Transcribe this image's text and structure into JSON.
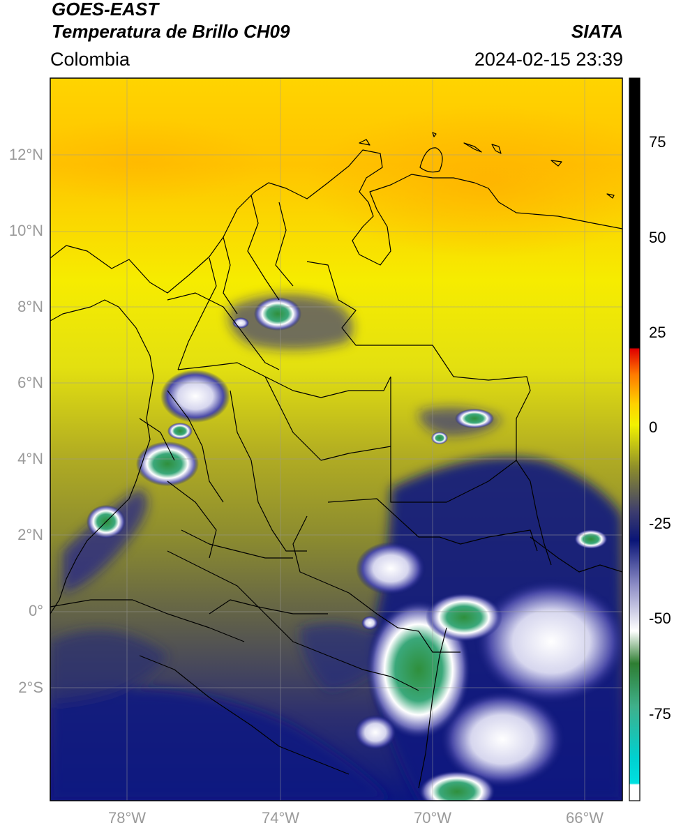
{
  "header": {
    "satellite": "GOES-EAST",
    "product": "Temperatura de Brillo CH09",
    "region": "Colombia",
    "agency": "SIATA",
    "datetime": "2024-02-15 23:39"
  },
  "map": {
    "lat_range": [
      -5,
      14
    ],
    "lon_range": [
      -80,
      -65
    ],
    "lat_ticks": [
      "12°N",
      "10°N",
      "8°N",
      "6°N",
      "4°N",
      "2°N",
      "0°",
      "2°S"
    ],
    "lon_ticks": [
      "78°W",
      "74°W",
      "70°W",
      "66°W"
    ]
  },
  "colorbar": {
    "range": [
      -100,
      90
    ],
    "ticks": [
      "75",
      "50",
      "25",
      "0",
      "-25",
      "-50",
      "-75"
    ],
    "colors": [
      "#ffffff",
      "#00d8d8",
      "#3fb08b",
      "#2e7d32",
      "#ffffff",
      "#8a8ac4",
      "#0a1577",
      "#3d3d6e",
      "#8c8c2c",
      "#f2f200",
      "#ffd000",
      "#ff5a00",
      "#e00000",
      "#000000"
    ]
  }
}
